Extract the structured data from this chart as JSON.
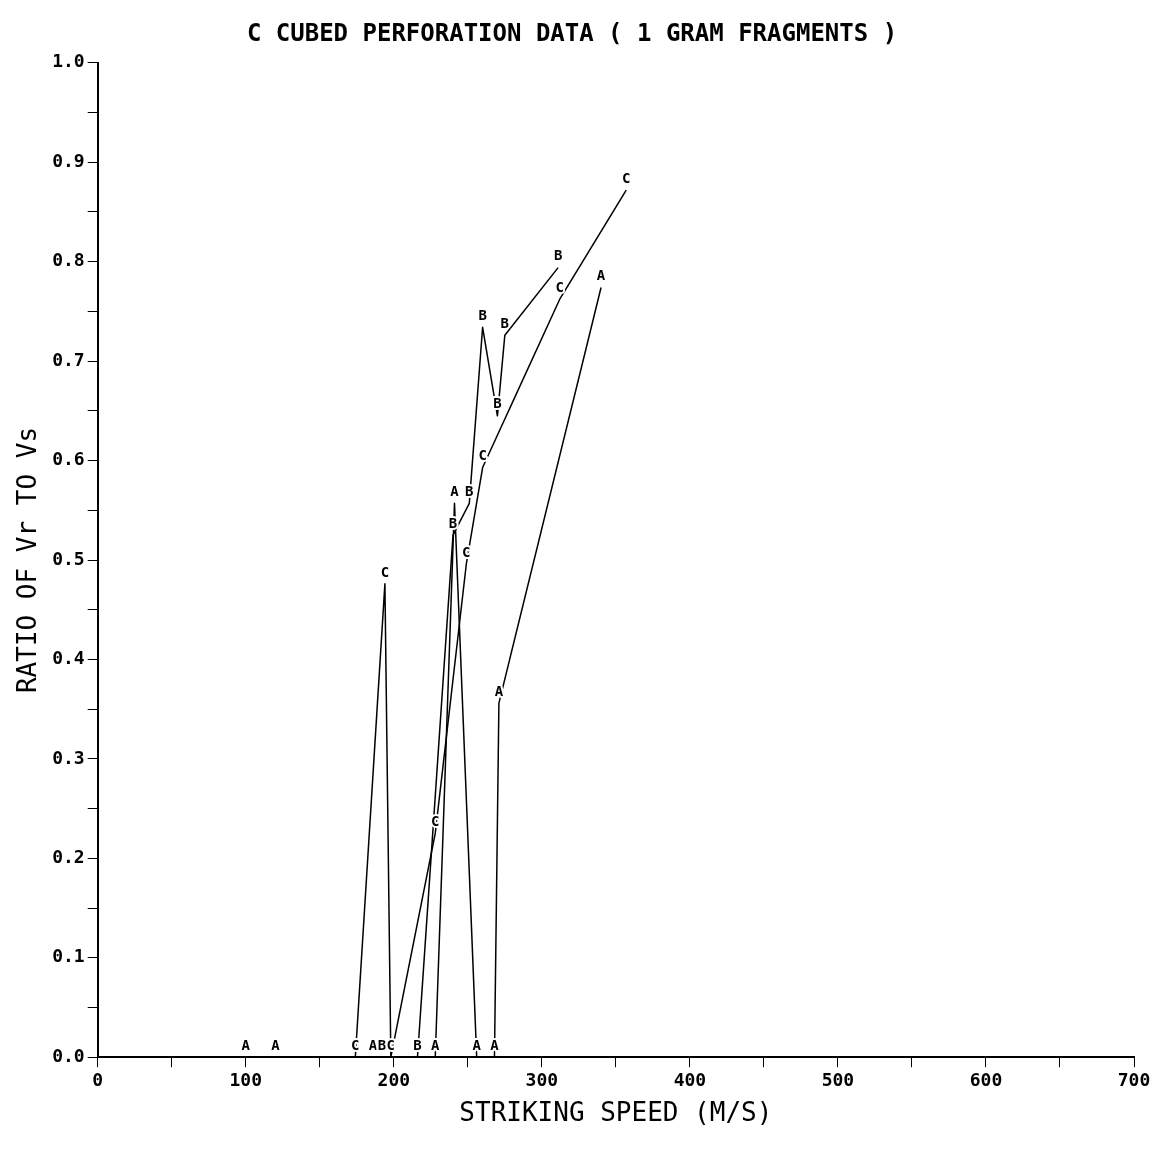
{
  "chart_data": {
    "type": "line",
    "title": "C CUBED PERFORATION DATA ( 1 GRAM FRAGMENTS )",
    "xlabel": "STRIKING SPEED (M/S)",
    "ylabel": "RATIO OF Vr TO Vs",
    "marker": "none",
    "grid": false,
    "legend": false,
    "xlim": [
      0,
      700
    ],
    "ylim": [
      0,
      1
    ],
    "xticks": [
      0,
      {
        "value": 50,
        "label": null
      },
      100,
      {
        "value": 150,
        "label": null
      },
      200,
      {
        "value": 250,
        "label": null
      },
      300,
      {
        "value": 350,
        "label": null
      },
      400,
      {
        "value": 450,
        "label": null
      },
      500,
      {
        "value": 550,
        "label": null
      },
      600,
      {
        "value": 650,
        "label": null
      },
      700
    ],
    "yticks": [
      {
        "value": 0,
        "label": "0.0"
      },
      {
        "value": 0.05,
        "label": null
      },
      {
        "value": 0.1,
        "label": "0.1"
      },
      {
        "value": 0.15,
        "label": null
      },
      {
        "value": 0.2,
        "label": "0.2"
      },
      {
        "value": 0.25,
        "label": null
      },
      {
        "value": 0.3,
        "label": "0.3"
      },
      {
        "value": 0.35,
        "label": null
      },
      {
        "value": 0.4,
        "label": "0.4"
      },
      {
        "value": 0.45,
        "label": null
      },
      {
        "value": 0.5,
        "label": "0.5"
      },
      {
        "value": 0.55,
        "label": null
      },
      {
        "value": 0.6,
        "label": "0.6"
      },
      {
        "value": 0.65,
        "label": null
      },
      {
        "value": 0.7,
        "label": "0.7"
      },
      {
        "value": 0.75,
        "label": null
      },
      {
        "value": 0.8,
        "label": "0.8"
      },
      {
        "value": 0.85,
        "label": null
      },
      {
        "value": 0.9,
        "label": "0.9"
      },
      {
        "value": 0.95,
        "label": null
      },
      {
        "value": 1,
        "label": "1.0"
      }
    ],
    "series": [
      {
        "name": "A",
        "color": "#000000",
        "x": [
          100,
          120,
          186,
          228,
          241,
          256,
          268,
          271,
          340
        ],
        "values": [
          0,
          0,
          0,
          0,
          0.557,
          0,
          0,
          0.356,
          0.774
        ]
      },
      {
        "name": "B",
        "color": "#000000",
        "x": [
          192,
          216,
          240,
          251,
          260,
          270,
          275,
          311
        ],
        "values": [
          0,
          0,
          0.525,
          0.557,
          0.734,
          0.645,
          0.726,
          0.794
        ]
      },
      {
        "name": "C",
        "color": "#000000",
        "x": [
          174,
          194,
          198,
          228,
          249,
          260,
          312,
          357
        ],
        "values": [
          0,
          0.476,
          0,
          0.225,
          0.496,
          0.593,
          0.762,
          0.872
        ]
      }
    ]
  }
}
